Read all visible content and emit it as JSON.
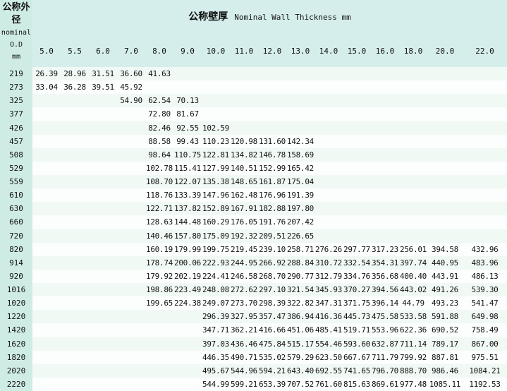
{
  "header": {
    "corner_lines": [
      "公称外",
      "径",
      "nominal",
      "O.D",
      "mm"
    ],
    "title_cn": "公称壁厚",
    "title_en": "Nominal Wall Thickness mm",
    "columns": [
      "5.0",
      "5.5",
      "6.0",
      "7.0",
      "8.0",
      "9.0",
      "10.0",
      "11.0",
      "12.0",
      "13.0",
      "14.0",
      "15.0",
      "16.0",
      "18.0",
      "20.0",
      "22.0"
    ]
  },
  "colors": {
    "header_bg": "#d5eeeb",
    "row_label_bg": "#cfece4",
    "stripe_a": "#f1f9f5",
    "stripe_b": "#fcfdfd",
    "text": "#111111"
  },
  "table": {
    "rows": [
      {
        "od": "219",
        "values": [
          "26.39",
          "28.96",
          "31.51",
          "36.60",
          "41.63",
          "",
          "",
          "",
          "",
          "",
          "",
          "",
          "",
          "",
          "",
          ""
        ]
      },
      {
        "od": "273",
        "values": [
          "33.04",
          "36.28",
          "39.51",
          "45.92",
          "",
          "",
          "",
          "",
          "",
          "",
          "",
          "",
          "",
          "",
          "",
          ""
        ]
      },
      {
        "od": "325",
        "values": [
          "",
          "",
          "",
          "54.90",
          "62.54",
          "70.13",
          "",
          "",
          "",
          "",
          "",
          "",
          "",
          "",
          "",
          ""
        ]
      },
      {
        "od": "377",
        "values": [
          "",
          "",
          "",
          "",
          "72.80",
          "81.67",
          "",
          "",
          "",
          "",
          "",
          "",
          "",
          "",
          "",
          ""
        ]
      },
      {
        "od": "426",
        "values": [
          "",
          "",
          "",
          "",
          "82.46",
          "92.55",
          "102.59",
          "",
          "",
          "",
          "",
          "",
          "",
          "",
          "",
          ""
        ]
      },
      {
        "od": "457",
        "values": [
          "",
          "",
          "",
          "",
          "88.58",
          "99.43",
          "110.23",
          "120.98",
          "131.60",
          "142.34",
          "",
          "",
          "",
          "",
          "",
          ""
        ]
      },
      {
        "od": "508",
        "values": [
          "",
          "",
          "",
          "",
          "98.64",
          "110.75",
          "122.81",
          "134.82",
          "146.78",
          "158.69",
          "",
          "",
          "",
          "",
          "",
          ""
        ]
      },
      {
        "od": "529",
        "values": [
          "",
          "",
          "",
          "",
          "102.78",
          "115.41",
          "127.99",
          "140.51",
          "152.99",
          "165.42",
          "",
          "",
          "",
          "",
          "",
          ""
        ]
      },
      {
        "od": "559",
        "values": [
          "",
          "",
          "",
          "",
          "108.70",
          "122.07",
          "135.38",
          "148.65",
          "161.87",
          "175.04",
          "",
          "",
          "",
          "",
          "",
          ""
        ]
      },
      {
        "od": "610",
        "values": [
          "",
          "",
          "",
          "",
          "118.76",
          "133.39",
          "147.96",
          "162.48",
          "176.96",
          "191.39",
          "",
          "",
          "",
          "",
          "",
          ""
        ]
      },
      {
        "od": "630",
        "values": [
          "",
          "",
          "",
          "",
          "122.71",
          "137.82",
          "152.89",
          "167.91",
          "182.88",
          "197.80",
          "",
          "",
          "",
          "",
          "",
          ""
        ]
      },
      {
        "od": "660",
        "values": [
          "",
          "",
          "",
          "",
          "128.63",
          "144.48",
          "160.29",
          "176.05",
          "191.76",
          "207.42",
          "",
          "",
          "",
          "",
          "",
          ""
        ]
      },
      {
        "od": "720",
        "values": [
          "",
          "",
          "",
          "",
          "140.46",
          "157.80",
          "175.09",
          "192.32",
          "209.51",
          "226.65",
          "",
          "",
          "",
          "",
          "",
          ""
        ]
      },
      {
        "od": "820",
        "values": [
          "",
          "",
          "",
          "",
          "160.19",
          "179.99",
          "199.75",
          "219.45",
          "239.10",
          "258.71",
          "276.26",
          "297.77",
          "317.23",
          "256.01",
          "394.58",
          "432.96"
        ]
      },
      {
        "od": "914",
        "values": [
          "",
          "",
          "",
          "",
          "178.74",
          "200.06",
          "222.93",
          "244.95",
          "266.92",
          "288.84",
          "310.72",
          "332.54",
          "354.31",
          "397.74",
          "440.95",
          "483.96"
        ]
      },
      {
        "od": "920",
        "values": [
          "",
          "",
          "",
          "",
          "179.92",
          "202.19",
          "224.41",
          "246.58",
          "268.70",
          "290.77",
          "312.79",
          "334.76",
          "356.68",
          "400.40",
          "443.91",
          "486.13"
        ]
      },
      {
        "od": "1016",
        "values": [
          "",
          "",
          "",
          "",
          "198.86",
          "223.49",
          "248.08",
          "272.62",
          "297.10",
          "321.54",
          "345.93",
          "370.27",
          "394.56",
          "443.02",
          "491.26",
          "539.30"
        ]
      },
      {
        "od": "1020",
        "values": [
          "",
          "",
          "",
          "",
          "199.65",
          "224.38",
          "249.07",
          "273.70",
          "298.39",
          "322.82",
          "347.31",
          "371.75",
          "396.14",
          "44.79",
          "493.23",
          "541.47"
        ]
      },
      {
        "od": "1220",
        "values": [
          "",
          "",
          "",
          "",
          "",
          "",
          "296.39",
          "327.95",
          "357.47",
          "386.94",
          "416.36",
          "445.73",
          "475.58",
          "533.58",
          "591.88",
          "649.98"
        ]
      },
      {
        "od": "1420",
        "values": [
          "",
          "",
          "",
          "",
          "",
          "",
          "347.71",
          "362.21",
          "416.66",
          "451.06",
          "485.41",
          "519.71",
          "553.96",
          "622.36",
          "690.52",
          "758.49"
        ]
      },
      {
        "od": "1620",
        "values": [
          "",
          "",
          "",
          "",
          "",
          "",
          "397.03",
          "436.46",
          "475.84",
          "515.17",
          "554.46",
          "593.60",
          "632.87",
          "711.14",
          "789.17",
          "867.00"
        ]
      },
      {
        "od": "1820",
        "values": [
          "",
          "",
          "",
          "",
          "",
          "",
          "446.35",
          "490.71",
          "535.02",
          "579.29",
          "623.50",
          "667.67",
          "711.79",
          "799.92",
          "887.81",
          "975.51"
        ]
      },
      {
        "od": "2020",
        "values": [
          "",
          "",
          "",
          "",
          "",
          "",
          "495.67",
          "544.96",
          "594.21",
          "643.40",
          "692.55",
          "741.65",
          "796.70",
          "888.70",
          "986.46",
          "1084.21"
        ]
      },
      {
        "od": "2220",
        "values": [
          "",
          "",
          "",
          "",
          "",
          "",
          "544.99",
          "599.21",
          "653.39",
          "707.52",
          "761.60",
          "815.63",
          "869.61",
          "977.48",
          "1085.11",
          "1192.53"
        ]
      }
    ]
  }
}
